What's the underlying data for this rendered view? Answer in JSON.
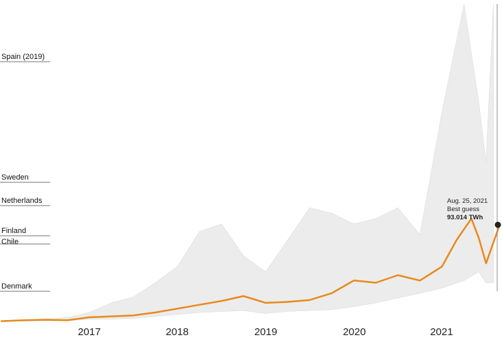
{
  "chart_data": {
    "type": "area",
    "series": [
      {
        "name": "",
        "role": "estimate_range",
        "color": "#ececec",
        "x": [
          "2016-01",
          "2016-04",
          "2016-07",
          "2016-10",
          "2017-01",
          "2017-04",
          "2017-07",
          "2017-10",
          "2018-01",
          "2018-04",
          "2018-07",
          "2018-10",
          "2019-01",
          "2019-04",
          "2019-07",
          "2019-10",
          "2020-01",
          "2020-04",
          "2020-07",
          "2020-10",
          "2021-01",
          "2021-04",
          "2021-06",
          "2021-07",
          "2021-08"
        ],
        "low": [
          1,
          1,
          1,
          1.5,
          3,
          3,
          4,
          6,
          8,
          10,
          11,
          12,
          9,
          11,
          12,
          13,
          16,
          20,
          25,
          30,
          35,
          42,
          50,
          40,
          40
        ],
        "high": [
          1,
          2,
          3,
          5,
          10,
          20,
          26,
          40,
          55,
          88,
          95,
          65,
          50,
          80,
          110,
          105,
          95,
          100,
          110,
          85,
          200,
          400,
          210,
          150,
          400
        ]
      },
      {
        "name": "",
        "role": "best_guess",
        "color": "#e8891a",
        "x": [
          "2016-01",
          "2016-04",
          "2016-07",
          "2016-10",
          "2017-01",
          "2017-04",
          "2017-07",
          "2017-10",
          "2018-01",
          "2018-04",
          "2018-07",
          "2018-10",
          "2019-01",
          "2019-04",
          "2019-07",
          "2019-10",
          "2020-01",
          "2020-04",
          "2020-07",
          "2020-10",
          "2021-01",
          "2021-03",
          "2021-05",
          "2021-06",
          "2021-07",
          "2021-08-25"
        ],
        "values": [
          1,
          2,
          2.5,
          2,
          5,
          6,
          7,
          10,
          14,
          18,
          22,
          27,
          20,
          21,
          23,
          30,
          42,
          40,
          47,
          42,
          55,
          80,
          100,
          82,
          58,
          93.014
        ]
      }
    ],
    "xlim": [
      "2016-01",
      "2021-09"
    ],
    "x_ticks": [
      "2017",
      "2018",
      "2019",
      "2020",
      "2021"
    ],
    "reference_lines": [
      {
        "label": "Spain (2019)",
        "value": 250
      },
      {
        "label": "Sweden",
        "value": 130
      },
      {
        "label": "Netherlands",
        "value": 112
      },
      {
        "label": "Finland",
        "value": 84
      },
      {
        "label": "Chile",
        "value": 76
      },
      {
        "label": "Denmark",
        "value": 32
      }
    ],
    "annotation": {
      "date": "Aug. 25, 2021",
      "label": "Best guess",
      "value": "93.014 TWh"
    },
    "grid": false,
    "legend": "none"
  }
}
